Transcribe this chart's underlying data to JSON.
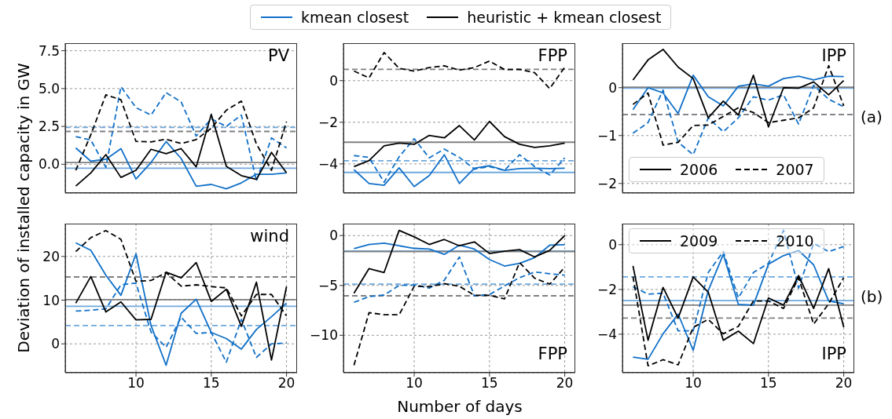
{
  "chart_data": [
    {
      "type": "line",
      "title": "PV",
      "ylabel": "Deviation of installed capacity in GW",
      "x": [
        6,
        7,
        8,
        9,
        10,
        11,
        12,
        13,
        14,
        15,
        16,
        17,
        18,
        19,
        20
      ],
      "xlim": [
        5.3,
        20.7
      ],
      "xticks": [
        10,
        15,
        20
      ],
      "ylim": [
        -1.9,
        8.0
      ],
      "yticks": [
        {
          "value": 0,
          "label": "0.0"
        },
        2.5,
        {
          "value": 5,
          "label": "5.0"
        },
        7.5
      ],
      "tick_labels": "y",
      "grid": true,
      "legend": "top",
      "series": [
        {
          "name": "kmean closest",
          "color": "#1170c8",
          "line_style": "solid",
          "values": [
            1.08,
            0.2,
            0.33,
            1.03,
            -0.97,
            0.12,
            1.5,
            0.38,
            -1.45,
            -1.33,
            -1.62,
            -1.23,
            -0.66,
            -0.66,
            -0.57
          ]
        },
        {
          "color": "#1170c8",
          "line_style": "dashed",
          "values": [
            1.83,
            1.6,
            -0.2,
            5.13,
            3.74,
            3.25,
            4.73,
            4.12,
            1.86,
            3.0,
            2.5,
            3.25,
            -1.1,
            1.74,
            1.08
          ]
        },
        {
          "name": "heuristic + kmean closest",
          "color": "#000000",
          "line_style": "solid",
          "values": [
            -1.44,
            -0.57,
            0.64,
            -0.87,
            -0.4,
            0.99,
            0.7,
            1.03,
            -0.17,
            3.3,
            -0.14,
            -0.75,
            -1.0,
            0.78,
            -0.57
          ]
        },
        {
          "color": "#000000",
          "line_style": "dashed",
          "values": [
            -0.4,
            1.95,
            4.59,
            4.26,
            1.51,
            1.48,
            1.65,
            1.37,
            1.63,
            2.38,
            3.57,
            4.17,
            1.34,
            -0.4,
            2.82
          ]
        }
      ],
      "ref_lines": [
        {
          "axis": "y",
          "value": -0.26,
          "color": "#6fa8dc",
          "line_style": "solid"
        },
        {
          "axis": "y",
          "value": 2.43,
          "color": "#6fa8dc",
          "line_style": "dashed"
        },
        {
          "axis": "y",
          "value": 0.12,
          "color": "#808080",
          "line_style": "solid"
        },
        {
          "axis": "y",
          "value": 2.17,
          "color": "#808080",
          "line_style": "dashed"
        }
      ]
    },
    {
      "type": "line",
      "title": "FPP",
      "x": [
        6,
        7,
        8,
        9,
        10,
        11,
        12,
        13,
        14,
        15,
        16,
        17,
        18,
        19,
        20
      ],
      "xlim": [
        5.3,
        20.7
      ],
      "xticks": [
        10,
        15,
        20
      ],
      "ylim": [
        -5.4,
        1.8
      ],
      "yticks": [
        {
          "value": -4,
          "label": "−4"
        },
        {
          "value": -2,
          "label": "−2"
        },
        0
      ],
      "tick_labels": "y",
      "grid": true,
      "series": [
        {
          "color": "#1170c8",
          "line_style": "solid",
          "values": [
            -4.28,
            -4.94,
            -5.03,
            -4.19,
            -5.09,
            -4.56,
            -3.56,
            -4.94,
            -4.21,
            -4.09,
            -4.31,
            -4.23,
            -4.21,
            -4.23,
            -4.21
          ]
        },
        {
          "color": "#1170c8",
          "line_style": "dashed",
          "values": [
            -3.6,
            -3.69,
            -4.88,
            -3.66,
            -2.79,
            -3.71,
            -3.29,
            -3.69,
            -4.25,
            -4.13,
            -4.31,
            -3.56,
            -4.13,
            -4.53,
            -3.71
          ]
        },
        {
          "color": "#000000",
          "line_style": "solid",
          "values": [
            -4.13,
            -3.84,
            -3.13,
            -3.0,
            -3.06,
            -2.63,
            -2.75,
            -2.16,
            -2.85,
            -1.96,
            -2.69,
            -3.06,
            -3.21,
            -3.13,
            -3.0
          ]
        },
        {
          "color": "#000000",
          "line_style": "dashed",
          "values": [
            0.46,
            0.13,
            1.35,
            0.59,
            0.46,
            0.63,
            0.71,
            0.5,
            0.63,
            0.94,
            0.53,
            0.54,
            0.38,
            -0.38,
            0.65
          ]
        }
      ],
      "ref_lines": [
        {
          "axis": "y",
          "value": -4.41,
          "color": "#6fa8dc",
          "line_style": "solid"
        },
        {
          "axis": "y",
          "value": -3.85,
          "color": "#6fa8dc",
          "line_style": "dashed"
        },
        {
          "axis": "y",
          "value": -2.96,
          "color": "#808080",
          "line_style": "solid"
        },
        {
          "axis": "y",
          "value": 0.54,
          "color": "#808080",
          "line_style": "dashed"
        }
      ]
    },
    {
      "type": "line",
      "title": "IPP",
      "annotations": [
        "(a)"
      ],
      "x": [
        6,
        7,
        8,
        9,
        10,
        11,
        12,
        13,
        14,
        15,
        16,
        17,
        18,
        19,
        20
      ],
      "xlim": [
        5.3,
        20.7
      ],
      "xticks": [
        10,
        15,
        20
      ],
      "ylim": [
        -2.2,
        0.93
      ],
      "yticks": [
        {
          "value": -2,
          "label": "−2"
        },
        {
          "value": -1,
          "label": "−1"
        },
        0
      ],
      "tick_labels": "y",
      "grid": true,
      "legend": "bottom",
      "series": [
        {
          "color": "#1170c8",
          "line_style": "solid",
          "values": [
            -0.46,
            0,
            -0.11,
            -0.54,
            0.26,
            -0.19,
            -0.38,
            0.03,
            0.08,
            0.03,
            0.19,
            0.24,
            0.16,
            0.24,
            0.23
          ]
        },
        {
          "color": "#1170c8",
          "line_style": "dashed",
          "values": [
            -0.95,
            -0.73,
            -0.05,
            -1.14,
            -1.4,
            -0.63,
            -0.92,
            -0.63,
            -0.19,
            -0.26,
            -0.15,
            -0.76,
            0.05,
            -0.24,
            -0.4
          ]
        },
        {
          "name": "2006",
          "color": "#000000",
          "line_style": "solid",
          "values": [
            0.16,
            0.58,
            0.8,
            0.43,
            0.19,
            -0.63,
            -0.28,
            -0.57,
            0.26,
            -0.82,
            0,
            -0.01,
            0.12,
            -0.15,
            0.15
          ]
        },
        {
          "name": "2007",
          "color": "#000000",
          "line_style": "dashed",
          "values": [
            -0.35,
            -0.11,
            -1.2,
            -1.14,
            -0.79,
            -0.78,
            -0.6,
            -0.42,
            -0.52,
            -0.73,
            -0.68,
            -0.63,
            -0.42,
            0.46,
            -0.38
          ]
        }
      ],
      "ref_lines": [
        {
          "axis": "y",
          "value": -0.01,
          "color": "#6fa8dc",
          "line_style": "solid"
        },
        {
          "axis": "y",
          "value": -0.56,
          "color": "#6fa8dc",
          "line_style": "dashed"
        },
        {
          "axis": "y",
          "value": 0.01,
          "color": "#808080",
          "line_style": "solid"
        },
        {
          "axis": "y",
          "value": -0.56,
          "color": "#808080",
          "line_style": "dashed"
        }
      ]
    },
    {
      "type": "line",
      "title": "wind",
      "x": [
        6,
        7,
        8,
        9,
        10,
        11,
        12,
        13,
        14,
        15,
        16,
        17,
        18,
        19,
        20
      ],
      "xlim": [
        5.3,
        20.7
      ],
      "xticks": [
        10,
        15,
        20
      ],
      "ylim": [
        -6.6,
        27.5
      ],
      "yticks": [
        0,
        10,
        20
      ],
      "grid": true,
      "series": [
        {
          "color": "#1170c8",
          "line_style": "solid",
          "values": [
            23.1,
            21.4,
            15.7,
            11.1,
            20.6,
            4.2,
            -4.9,
            7.0,
            10.2,
            2.6,
            1.2,
            -1.2,
            3.3,
            6.2,
            9.3
          ]
        },
        {
          "color": "#1170c8",
          "line_style": "dashed",
          "values": [
            7.5,
            7.7,
            8.0,
            13.5,
            13.9,
            2.7,
            -0.8,
            6.1,
            2.4,
            2.6,
            -4.2,
            5.6,
            -3.1,
            0,
            0.2
          ]
        },
        {
          "color": "#000000",
          "line_style": "solid",
          "values": [
            9.3,
            15.4,
            7.3,
            9.6,
            5.5,
            5.6,
            16.4,
            15.1,
            18.6,
            9.7,
            12.5,
            4.0,
            14.1,
            -3.7,
            13.1
          ]
        },
        {
          "color": "#000000",
          "line_style": "dashed",
          "values": [
            21.1,
            24.3,
            25.9,
            23.9,
            14.3,
            14.5,
            16.3,
            13.2,
            13.5,
            13.1,
            12.8,
            6.4,
            11.3,
            11.3,
            6.4
          ]
        }
      ],
      "ref_lines": [
        {
          "axis": "y",
          "value": 8.6,
          "color": "#6fa8dc",
          "line_style": "solid"
        },
        {
          "axis": "y",
          "value": 4.2,
          "color": "#6fa8dc",
          "line_style": "dashed"
        },
        {
          "axis": "y",
          "value": 10.1,
          "color": "#808080",
          "line_style": "solid"
        },
        {
          "axis": "y",
          "value": 15.3,
          "color": "#808080",
          "line_style": "dashed"
        }
      ]
    },
    {
      "type": "line",
      "title": "FPP",
      "xlabel": "Number of days",
      "x": [
        6,
        7,
        8,
        9,
        10,
        11,
        12,
        13,
        14,
        15,
        16,
        17,
        18,
        19,
        20
      ],
      "xlim": [
        5.3,
        20.7
      ],
      "xticks": [
        10,
        15,
        20
      ],
      "ylim": [
        -13.75,
        1.2
      ],
      "yticks": [
        {
          "value": -10,
          "label": "−10"
        },
        {
          "value": -5,
          "label": "−5"
        },
        0
      ],
      "grid": true,
      "series": [
        {
          "color": "#1170c8",
          "line_style": "solid",
          "values": [
            -1.3,
            -0.89,
            -0.76,
            -1.02,
            -1.28,
            -1.35,
            -1.88,
            -0.96,
            -1.35,
            -2.4,
            -3.05,
            -2.79,
            -2.21,
            -0.96,
            -0.91
          ]
        },
        {
          "color": "#1170c8",
          "line_style": "dashed",
          "values": [
            -6.69,
            -6.12,
            -5.96,
            -5.0,
            -4.95,
            -5.27,
            -4.48,
            -2.14,
            -6.04,
            -5.91,
            -5.05,
            -4.22,
            -3.65,
            -3.83,
            -3.96
          ]
        },
        {
          "color": "#000000",
          "line_style": "solid",
          "values": [
            -5.78,
            -3.31,
            -3.7,
            0.52,
            -0.13,
            -0.89,
            -0.39,
            -1.02,
            -0.63,
            -1.8,
            -1.56,
            -1.41,
            -2.14,
            -1.48,
            0
          ]
        },
        {
          "color": "#000000",
          "line_style": "dashed",
          "values": [
            -13.0,
            -7.73,
            -7.94,
            -7.94,
            -5.08,
            -5.13,
            -4.82,
            -5.08,
            -5.99,
            -5.99,
            -6.35,
            -2.71,
            -4.27,
            -4.87,
            -3.18
          ]
        }
      ],
      "ref_lines": [
        {
          "axis": "y",
          "value": -1.54,
          "color": "#6fa8dc",
          "line_style": "solid"
        },
        {
          "axis": "y",
          "value": -4.87,
          "color": "#6fa8dc",
          "line_style": "dashed"
        },
        {
          "axis": "y",
          "value": -1.61,
          "color": "#808080",
          "line_style": "solid"
        },
        {
          "axis": "y",
          "value": -6.04,
          "color": "#808080",
          "line_style": "dashed"
        }
      ]
    },
    {
      "type": "line",
      "title": "IPP",
      "annotations": [
        "(b)"
      ],
      "x": [
        6,
        7,
        8,
        9,
        10,
        11,
        12,
        13,
        14,
        15,
        16,
        17,
        18,
        19,
        20
      ],
      "xlim": [
        5.3,
        20.7
      ],
      "xticks": [
        10,
        15,
        20
      ],
      "ylim": [
        -5.72,
        0.94
      ],
      "yticks": [
        {
          "value": -4,
          "label": "−4"
        },
        {
          "value": -2,
          "label": "−2"
        },
        0
      ],
      "grid": true,
      "legend": "top",
      "series": [
        {
          "color": "#1170c8",
          "line_style": "solid",
          "values": [
            -5.02,
            -5.12,
            -3.98,
            -3.1,
            -4.72,
            -2.05,
            -0.43,
            -2.67,
            -2.7,
            -0.87,
            -0.49,
            -0.26,
            -0.9,
            -2.52,
            -2.64
          ]
        },
        {
          "color": "#1170c8",
          "line_style": "dashed",
          "values": [
            -1.88,
            -2.21,
            -2.17,
            -3.85,
            -3.85,
            -1.24,
            -0.31,
            -2.38,
            -1.24,
            -0.84,
            0.64,
            -1.94,
            0.06,
            -0.31,
            -0.08
          ]
        },
        {
          "name": "2009",
          "color": "#000000",
          "line_style": "solid",
          "values": [
            -0.95,
            -4.27,
            -1.91,
            -3.28,
            -1.44,
            -2.12,
            -4.27,
            -3.86,
            -4.42,
            -2.38,
            -2.7,
            -1.38,
            -2.85,
            -1.07,
            -3.69
          ]
        },
        {
          "name": "2010",
          "color": "#000000",
          "line_style": "dashed",
          "values": [
            -1.42,
            -5.41,
            -5.14,
            -5.37,
            -3.69,
            -3.34,
            -3.98,
            -3.65,
            -2.52,
            -2.52,
            -2.85,
            -1.48,
            -3.55,
            -2.64,
            -1.48
          ]
        }
      ],
      "ref_lines": [
        {
          "axis": "y",
          "value": -2.5,
          "color": "#6fa8dc",
          "line_style": "solid"
        },
        {
          "axis": "y",
          "value": -1.44,
          "color": "#6fa8dc",
          "line_style": "dashed"
        },
        {
          "axis": "y",
          "value": -2.7,
          "color": "#808080",
          "line_style": "solid"
        },
        {
          "axis": "y",
          "value": -3.28,
          "color": "#808080",
          "line_style": "dashed"
        }
      ]
    }
  ]
}
